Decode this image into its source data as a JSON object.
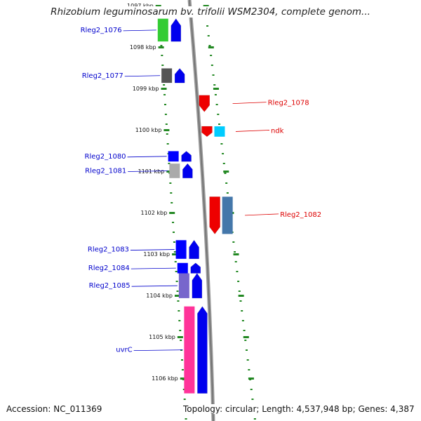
{
  "title": "Rhizobium leguminosarum bv. trifolii WSM2304, complete genom...",
  "footer": {
    "accession": "Accession: NC_011369",
    "topology": "Topology: circular; Length: 4,537,948 bp; Genes: 4,387"
  },
  "colors": {
    "forward_label": "#0000cc",
    "reverse_label": "#dd0000",
    "tick": "#228822",
    "backbone": "#888888"
  },
  "coordinates": {
    "unit": "kbp",
    "ticks": [
      {
        "kbp": 1097,
        "label": "1097 kbp"
      },
      {
        "kbp": 1098,
        "label": "1098 kbp"
      },
      {
        "kbp": 1099,
        "label": "1099 kbp"
      },
      {
        "kbp": 1100,
        "label": "1100 kbp"
      },
      {
        "kbp": 1101,
        "label": "1101 kbp"
      },
      {
        "kbp": 1102,
        "label": "1102 kbp"
      },
      {
        "kbp": 1103,
        "label": "1103 kbp"
      },
      {
        "kbp": 1104,
        "label": "1104 kbp"
      },
      {
        "kbp": 1105,
        "label": "1105 kbp"
      },
      {
        "kbp": 1106,
        "label": "1106 kbp"
      }
    ]
  },
  "genes": [
    {
      "id": "g1076",
      "label": "Rleg2_1076",
      "strand": "forward",
      "start_kbp": 1097.35,
      "end_kbp": 1097.9,
      "product_color": "#33cc33"
    },
    {
      "id": "g1077",
      "label": "Rleg2_1077",
      "strand": "forward",
      "start_kbp": 1098.55,
      "end_kbp": 1098.9,
      "product_color": "#555555"
    },
    {
      "id": "g1078",
      "label": "Rleg2_1078",
      "strand": "reverse",
      "start_kbp": 1099.2,
      "end_kbp": 1099.6,
      "product_color": "#ff0000"
    },
    {
      "id": "gndk",
      "label": "ndk",
      "strand": "reverse",
      "start_kbp": 1099.95,
      "end_kbp": 1100.2,
      "product_color": "#ff0000",
      "product_color2": "#00ccff"
    },
    {
      "id": "g1080",
      "label": "Rleg2_1080",
      "strand": "forward",
      "start_kbp": 1100.55,
      "end_kbp": 1100.8,
      "product_color": "#0000ff"
    },
    {
      "id": "g1081",
      "label": "Rleg2_1081",
      "strand": "forward",
      "start_kbp": 1100.85,
      "end_kbp": 1101.2,
      "product_color": "#aaaaaa"
    },
    {
      "id": "g1082",
      "label": "Rleg2_1082",
      "strand": "reverse",
      "start_kbp": 1101.65,
      "end_kbp": 1102.55,
      "product_color": "#ff0000",
      "product_color2": "#4477aa"
    },
    {
      "id": "g1083",
      "label": "Rleg2_1083",
      "strand": "forward",
      "start_kbp": 1102.7,
      "end_kbp": 1103.15,
      "product_color": "#0000ff"
    },
    {
      "id": "g1084",
      "label": "Rleg2_1084",
      "strand": "forward",
      "start_kbp": 1103.25,
      "end_kbp": 1103.5,
      "product_color": "#0000ff"
    },
    {
      "id": "g1085",
      "label": "Rleg2_1085",
      "strand": "forward",
      "start_kbp": 1103.5,
      "end_kbp": 1104.1,
      "product_color": "#7766cc"
    },
    {
      "id": "guvrC",
      "label": "uvrC",
      "strand": "forward",
      "start_kbp": 1104.3,
      "end_kbp": 1106.4,
      "product_color": "#ff3399"
    }
  ]
}
